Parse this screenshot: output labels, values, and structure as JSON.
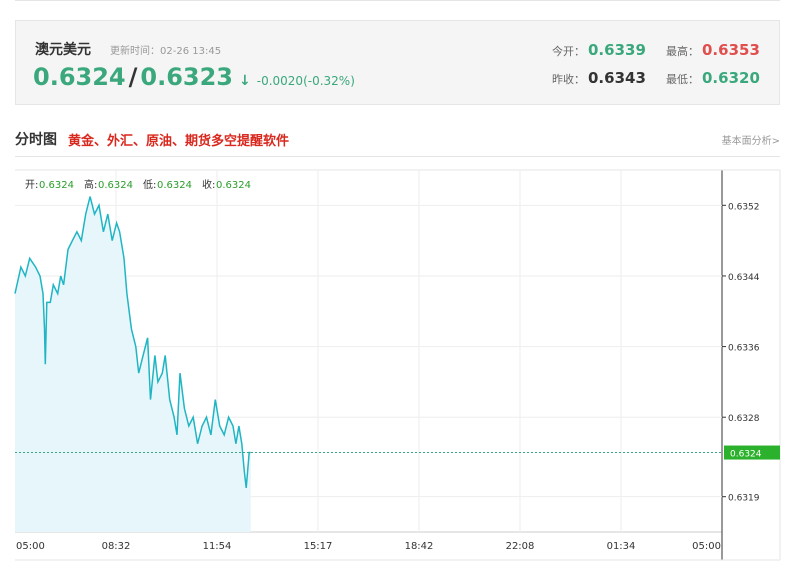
{
  "quote": {
    "name": "澳元美元",
    "update_time": "更新时间：02-26 13:45",
    "bid": "0.6324",
    "separator": "/",
    "ask": "0.6323",
    "arrow": "↓",
    "change": "-0.0020(-0.32%)",
    "open_label": "今开：",
    "open_value": "0.6339",
    "high_label": "最高：",
    "high_value": "0.6353",
    "prevclose_label": "昨收：",
    "prevclose_value": "0.6343",
    "low_label": "最低：",
    "low_value": "0.6320",
    "colors": {
      "up": "#e04e4e",
      "down": "#3aa87c"
    }
  },
  "section": {
    "title": "分时图",
    "ad_text": "黄金、外汇、原油、期货多空提醒软件",
    "link": "基本面分析>"
  },
  "chart_data": {
    "type": "area",
    "ohlc_labels": {
      "open": "开:",
      "high": "高:",
      "low": "低:",
      "close": "收:"
    },
    "ohlc_values": {
      "open": "0.6324",
      "high": "0.6324",
      "low": "0.6324",
      "close": "0.6324"
    },
    "x_ticks": [
      "05:00",
      "08:32",
      "11:54",
      "15:17",
      "18:42",
      "22:08",
      "01:34",
      "05:00"
    ],
    "y_ticks": [
      "0.6352",
      "0.6344",
      "0.6336",
      "0.6328",
      "0.6319"
    ],
    "current_price_label": "0.6324",
    "current_price": 0.6324,
    "ylim": [
      0.6315,
      0.6356
    ],
    "session_hours": 24,
    "line_color": "#1fb5c4",
    "fill_color": "#e6f6fa",
    "points": [
      [
        0.0,
        0.6342
      ],
      [
        0.2,
        0.6345
      ],
      [
        0.35,
        0.6344
      ],
      [
        0.5,
        0.6346
      ],
      [
        0.7,
        0.6345
      ],
      [
        0.85,
        0.6344
      ],
      [
        0.95,
        0.6342
      ],
      [
        1.0,
        0.6338
      ],
      [
        1.03,
        0.6334
      ],
      [
        1.08,
        0.6341
      ],
      [
        1.2,
        0.6341
      ],
      [
        1.3,
        0.6343
      ],
      [
        1.45,
        0.6342
      ],
      [
        1.55,
        0.6344
      ],
      [
        1.65,
        0.6343
      ],
      [
        1.8,
        0.6347
      ],
      [
        1.95,
        0.6348
      ],
      [
        2.1,
        0.6349
      ],
      [
        2.25,
        0.6348
      ],
      [
        2.4,
        0.6351
      ],
      [
        2.55,
        0.6353
      ],
      [
        2.7,
        0.6351
      ],
      [
        2.85,
        0.6352
      ],
      [
        3.0,
        0.6349
      ],
      [
        3.15,
        0.6351
      ],
      [
        3.3,
        0.6348
      ],
      [
        3.45,
        0.635
      ],
      [
        3.55,
        0.6349
      ],
      [
        3.7,
        0.6346
      ],
      [
        3.8,
        0.6342
      ],
      [
        3.95,
        0.6338
      ],
      [
        4.1,
        0.6336
      ],
      [
        4.2,
        0.6333
      ],
      [
        4.35,
        0.6335
      ],
      [
        4.5,
        0.6337
      ],
      [
        4.6,
        0.633
      ],
      [
        4.75,
        0.6335
      ],
      [
        4.85,
        0.6332
      ],
      [
        5.0,
        0.6333
      ],
      [
        5.1,
        0.6335
      ],
      [
        5.25,
        0.633
      ],
      [
        5.4,
        0.6328
      ],
      [
        5.5,
        0.6326
      ],
      [
        5.6,
        0.6333
      ],
      [
        5.75,
        0.6329
      ],
      [
        5.9,
        0.6327
      ],
      [
        6.05,
        0.6328
      ],
      [
        6.2,
        0.6325
      ],
      [
        6.35,
        0.6327
      ],
      [
        6.5,
        0.6328
      ],
      [
        6.65,
        0.6326
      ],
      [
        6.8,
        0.633
      ],
      [
        6.95,
        0.6327
      ],
      [
        7.1,
        0.6326
      ],
      [
        7.25,
        0.6328
      ],
      [
        7.4,
        0.6327
      ],
      [
        7.5,
        0.6325
      ],
      [
        7.6,
        0.6327
      ],
      [
        7.7,
        0.6325
      ],
      [
        7.78,
        0.6322
      ],
      [
        7.85,
        0.632
      ],
      [
        7.9,
        0.6322
      ],
      [
        7.95,
        0.6324
      ],
      [
        8.0,
        0.6324
      ]
    ]
  }
}
